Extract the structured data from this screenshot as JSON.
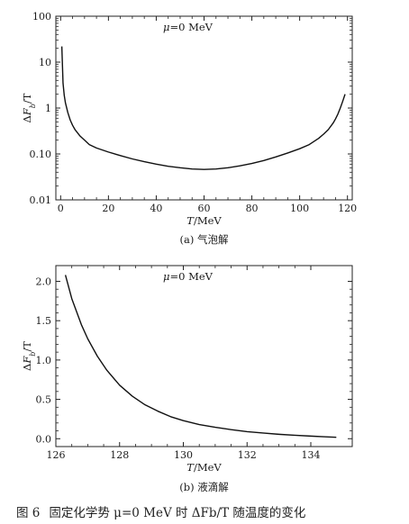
{
  "figure_caption": {
    "number": "图 6",
    "text": "固定化学势 μ=0 MeV 时 ΔFb/T 随温度的变化"
  },
  "chart_data": [
    {
      "type": "line",
      "panel_label": "(a) 气泡解",
      "annotation": "μ=0 MeV",
      "xlabel": "T/MeV",
      "ylabel": "ΔFb/T",
      "xlim": [
        -2,
        122
      ],
      "ylim": [
        0.01,
        100
      ],
      "yscale": "log",
      "xticks": [
        0,
        20,
        40,
        60,
        80,
        100,
        120
      ],
      "yticks": [
        0.01,
        0.1,
        1,
        10,
        100
      ],
      "ytick_labels": [
        "0.01",
        "0.10",
        "1",
        "10",
        "100"
      ],
      "grid": false,
      "series": [
        {
          "x": [
            0.5,
            1,
            1.5,
            2,
            3,
            4,
            5,
            6,
            8,
            10,
            12,
            15,
            20,
            25,
            30,
            35,
            40,
            45,
            50,
            55,
            60,
            65,
            70,
            75,
            80,
            85,
            90,
            95,
            100,
            104,
            108,
            110,
            112,
            114,
            115,
            116,
            117,
            118,
            119
          ],
          "y": [
            22,
            3.5,
            1.9,
            1.3,
            0.8,
            0.55,
            0.42,
            0.34,
            0.25,
            0.2,
            0.16,
            0.135,
            0.11,
            0.092,
            0.078,
            0.068,
            0.06,
            0.054,
            0.05,
            0.047,
            0.046,
            0.047,
            0.05,
            0.055,
            0.062,
            0.072,
            0.086,
            0.105,
            0.13,
            0.16,
            0.22,
            0.27,
            0.34,
            0.47,
            0.58,
            0.74,
            1.0,
            1.4,
            2.0
          ]
        }
      ]
    },
    {
      "type": "line",
      "panel_label": "(b) 液滴解",
      "annotation": "μ=0 MeV",
      "xlabel": "T/MeV",
      "ylabel": "ΔFb/T",
      "xlim": [
        126,
        135.3
      ],
      "ylim": [
        -0.1,
        2.2
      ],
      "yscale": "linear",
      "xticks": [
        126,
        128,
        130,
        132,
        134
      ],
      "yticks": [
        0.0,
        0.5,
        1.0,
        1.5,
        2.0
      ],
      "ytick_labels": [
        "0.0",
        "0.5",
        "1.0",
        "1.5",
        "2.0"
      ],
      "grid": false,
      "series": [
        {
          "x": [
            126.3,
            126.5,
            126.8,
            127.0,
            127.3,
            127.6,
            128.0,
            128.4,
            128.8,
            129.2,
            129.6,
            130.0,
            130.5,
            131.0,
            131.5,
            132.0,
            132.5,
            133.0,
            133.5,
            134.0,
            134.4,
            134.8
          ],
          "y": [
            2.08,
            1.78,
            1.45,
            1.27,
            1.05,
            0.87,
            0.68,
            0.54,
            0.43,
            0.35,
            0.28,
            0.23,
            0.18,
            0.145,
            0.115,
            0.09,
            0.072,
            0.056,
            0.044,
            0.033,
            0.025,
            0.018
          ]
        }
      ]
    }
  ]
}
